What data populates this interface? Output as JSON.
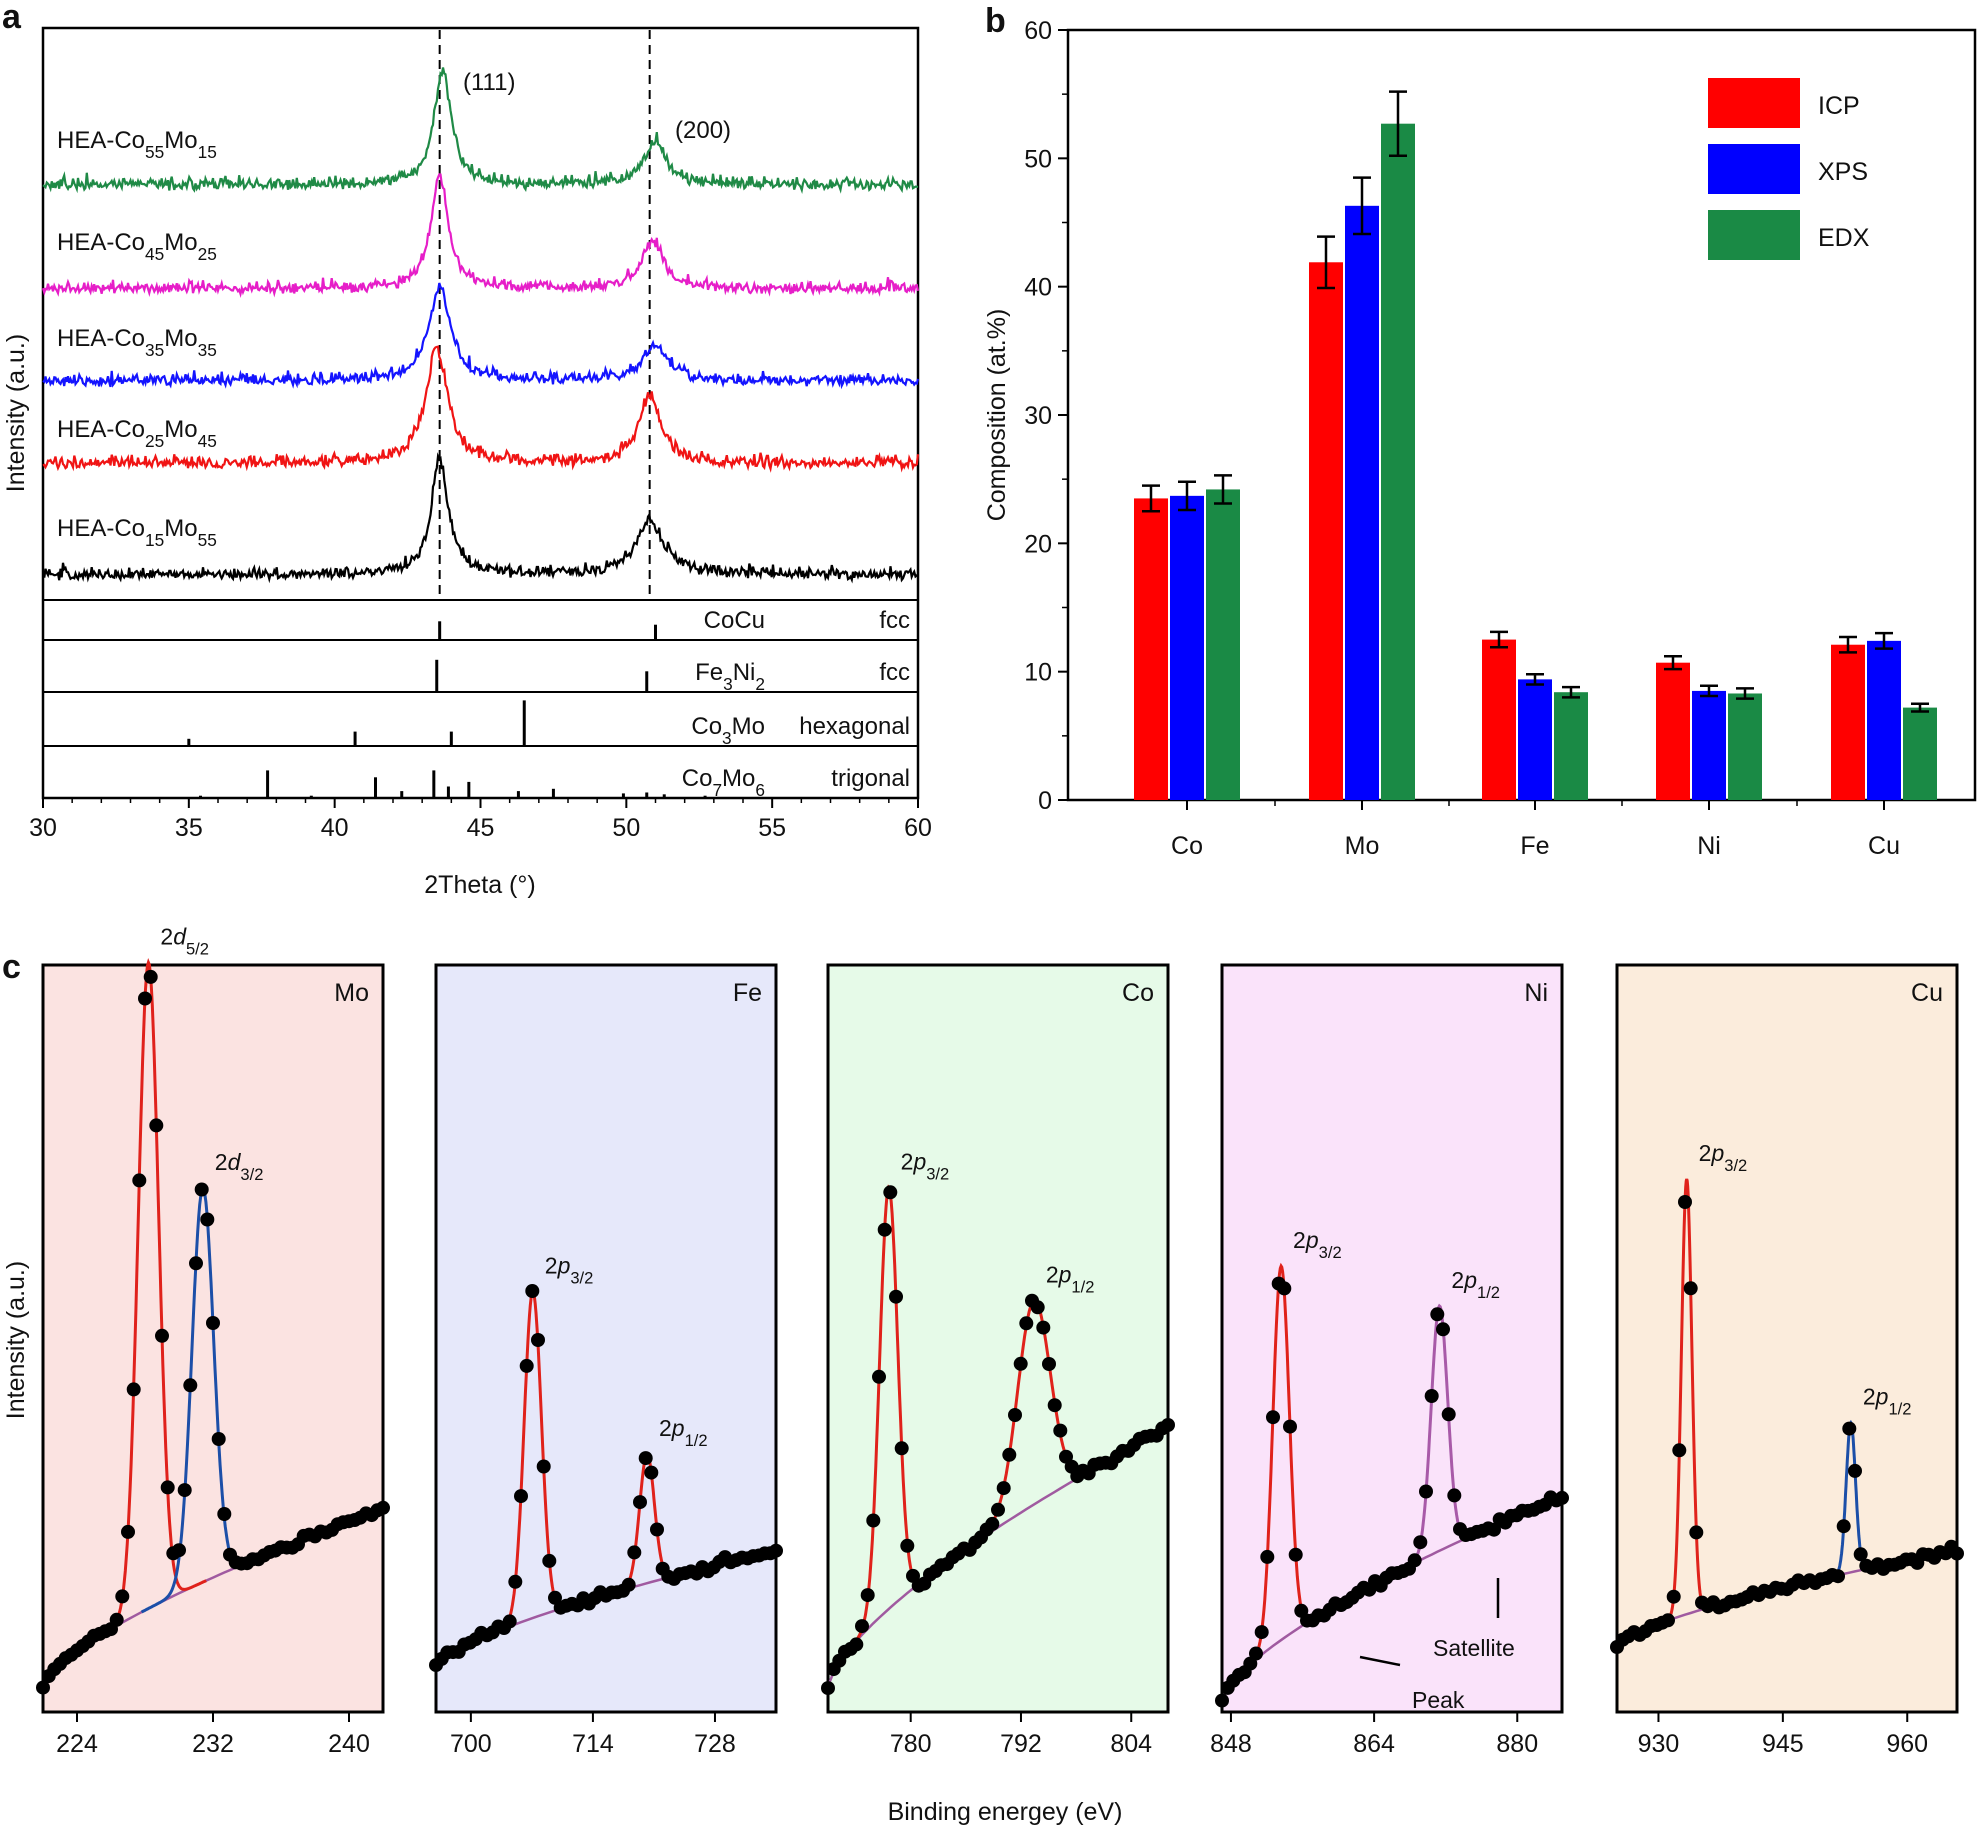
{
  "panels": {
    "a": "a",
    "b": "b",
    "c": "c"
  },
  "chart_data": [
    {
      "id": "a",
      "type": "line",
      "xlabel": "2Theta (°)",
      "ylabel": "Intensity (a.u.)",
      "xlim": [
        30,
        60
      ],
      "xticks": [
        30,
        35,
        40,
        45,
        50,
        55,
        60
      ],
      "peak_labels": [
        {
          "text": "(111)",
          "x": 43.6
        },
        {
          "text": "(200)",
          "x": 50.8
        }
      ],
      "series": [
        {
          "name": "HEA-Co55Mo15",
          "label_main": "HEA-Co",
          "sub1": "55",
          "mid": "Mo",
          "sub2": "15",
          "color": "#1f8a46",
          "peaks": [
            {
              "x": 43.7,
              "h": 1.0,
              "w": 0.35
            },
            {
              "x": 51.0,
              "h": 0.38,
              "w": 0.45
            }
          ]
        },
        {
          "name": "HEA-Co45Mo25",
          "label_main": "HEA-Co",
          "sub1": "45",
          "mid": "Mo",
          "sub2": "25",
          "color": "#e61ec8",
          "peaks": [
            {
              "x": 43.6,
              "h": 1.0,
              "w": 0.35
            },
            {
              "x": 50.9,
              "h": 0.42,
              "w": 0.45
            }
          ]
        },
        {
          "name": "HEA-Co35Mo35",
          "label_main": "HEA-Co",
          "sub1": "35",
          "mid": "Mo",
          "sub2": "35",
          "color": "#1414ff",
          "peaks": [
            {
              "x": 43.6,
              "h": 0.8,
              "w": 0.45
            },
            {
              "x": 51.0,
              "h": 0.3,
              "w": 0.5
            }
          ]
        },
        {
          "name": "HEA-Co25Mo45",
          "label_main": "HEA-Co",
          "sub1": "25",
          "mid": "Mo",
          "sub2": "45",
          "color": "#f01414",
          "peaks": [
            {
              "x": 43.5,
              "h": 1.0,
              "w": 0.45
            },
            {
              "x": 50.8,
              "h": 0.6,
              "w": 0.45
            }
          ]
        },
        {
          "name": "HEA-Co15Mo55",
          "label_main": "HEA-Co",
          "sub1": "15",
          "mid": "Mo",
          "sub2": "55",
          "color": "#000000",
          "peaks": [
            {
              "x": 43.6,
              "h": 1.0,
              "w": 0.35
            },
            {
              "x": 50.8,
              "h": 0.45,
              "w": 0.6
            }
          ]
        }
      ],
      "references": [
        {
          "phase": "CoCu",
          "phase_main": "CoCu",
          "s1": "",
          "m": "",
          "s2": "",
          "structure": "fcc",
          "lines": [
            {
              "x": 43.6,
              "h": 0.55
            },
            {
              "x": 51.0,
              "h": 0.45
            }
          ]
        },
        {
          "phase": "Fe3Ni2",
          "phase_main": "Fe",
          "s1": "3",
          "m": "Ni",
          "s2": "2",
          "structure": "fcc",
          "lines": [
            {
              "x": 43.5,
              "h": 0.7
            },
            {
              "x": 50.7,
              "h": 0.45
            }
          ]
        },
        {
          "phase": "Co3Mo",
          "phase_main": "Co",
          "s1": "3",
          "m": "Mo",
          "s2": "",
          "structure": "hexagonal",
          "lines": [
            {
              "x": 35.0,
              "h": 0.15
            },
            {
              "x": 40.7,
              "h": 0.3
            },
            {
              "x": 44.0,
              "h": 0.3
            },
            {
              "x": 46.5,
              "h": 0.95
            }
          ]
        },
        {
          "phase": "Co7Mo6",
          "phase_main": "Co",
          "s1": "7",
          "m": "Mo",
          "s2": "6",
          "structure": "trigonal",
          "lines": [
            {
              "x": 35.4,
              "h": 0.05
            },
            {
              "x": 37.7,
              "h": 0.6
            },
            {
              "x": 39.2,
              "h": 0.05
            },
            {
              "x": 41.4,
              "h": 0.45
            },
            {
              "x": 42.3,
              "h": 0.15
            },
            {
              "x": 43.4,
              "h": 0.6
            },
            {
              "x": 43.9,
              "h": 0.25
            },
            {
              "x": 44.6,
              "h": 0.35
            },
            {
              "x": 46.3,
              "h": 0.15
            },
            {
              "x": 47.5,
              "h": 0.2
            },
            {
              "x": 49.9,
              "h": 0.1
            },
            {
              "x": 50.7,
              "h": 0.12
            },
            {
              "x": 51.3,
              "h": 0.08
            },
            {
              "x": 52.7,
              "h": 0.05
            }
          ]
        }
      ]
    },
    {
      "id": "b",
      "type": "bar",
      "ylabel": "Composition (at.%)",
      "ylim": [
        0,
        60
      ],
      "yticks": [
        0,
        10,
        20,
        30,
        40,
        50,
        60
      ],
      "categories": [
        "Co",
        "Mo",
        "Fe",
        "Ni",
        "Cu"
      ],
      "series": [
        {
          "name": "ICP",
          "color": "#ff0000",
          "values": [
            23.5,
            41.9,
            12.5,
            10.7,
            12.1
          ],
          "errors": [
            1.0,
            2.0,
            0.6,
            0.5,
            0.6
          ]
        },
        {
          "name": "XPS",
          "color": "#0000ff",
          "values": [
            23.7,
            46.3,
            9.4,
            8.5,
            12.4
          ],
          "errors": [
            1.1,
            2.2,
            0.4,
            0.4,
            0.6
          ]
        },
        {
          "name": "EDX",
          "color": "#1a8a45",
          "values": [
            24.2,
            52.7,
            8.4,
            8.3,
            7.2
          ],
          "errors": [
            1.1,
            2.5,
            0.4,
            0.4,
            0.3
          ]
        }
      ],
      "legend_position": "top-right"
    },
    {
      "id": "c",
      "type": "scatter",
      "xlabel": "Binding energey (eV)",
      "ylabel": "Intensity (a.u.)",
      "subpanels": [
        {
          "element": "Mo",
          "bg": "#fbe3e1",
          "xlim": [
            222,
            242
          ],
          "xticks": [
            224,
            232,
            240
          ],
          "peaks": [
            {
              "x": 228.2,
              "h": 0.95,
              "w": 0.85,
              "color": "#e0221b",
              "label": "2d",
              "sub": "5/2"
            },
            {
              "x": 231.4,
              "h": 0.58,
              "w": 0.9,
              "color": "#1c4fa8",
              "label": "2d",
              "sub": "3/2"
            }
          ],
          "baseline": [
            0.02,
            0.28
          ],
          "offset": 0.0
        },
        {
          "element": "Fe",
          "bg": "#e6e8fa",
          "xlim": [
            696,
            735
          ],
          "xticks": [
            700,
            714,
            728
          ],
          "peaks": [
            {
              "x": 707.1,
              "h": 0.48,
              "w": 1.4,
              "color": "#e0221b",
              "label": "2p",
              "sub": "3/2"
            },
            {
              "x": 720.2,
              "h": 0.19,
              "w": 1.2,
              "color": "#e0221b",
              "label": "2p",
              "sub": "1/2"
            }
          ],
          "baseline": [
            0.05,
            0.22
          ],
          "offset": 0.0
        },
        {
          "element": "Co",
          "bg": "#e6fae8",
          "xlim": [
            771,
            808
          ],
          "xticks": [
            780,
            792,
            804
          ],
          "peaks": [
            {
              "x": 777.6,
              "h": 0.62,
              "w": 1.4,
              "color": "#e0221b",
              "label": "2p",
              "sub": "3/2"
            },
            {
              "x": 793.4,
              "h": 0.3,
              "w": 2.5,
              "color": "#e0221b",
              "label": "2p",
              "sub": "1/2"
            }
          ],
          "baseline": [
            0.02,
            0.4
          ],
          "offset": 0.0
        },
        {
          "element": "Ni",
          "bg": "#fae3fa",
          "xlim": [
            847,
            885
          ],
          "xticks": [
            848,
            864,
            880
          ],
          "peaks": [
            {
              "x": 853.6,
              "h": 0.55,
              "w": 1.3,
              "color": "#e0221b",
              "label": "2p",
              "sub": "3/2"
            },
            {
              "x": 871.3,
              "h": 0.36,
              "w": 1.3,
              "color": "#a85aa8",
              "label": "2p",
              "sub": "1/2"
            }
          ],
          "baseline": [
            0.0,
            0.3
          ],
          "offset": 0.0,
          "annotations": [
            {
              "text": "Peak"
            },
            {
              "text": "Satellite"
            }
          ]
        },
        {
          "element": "Cu",
          "bg": "#fbecdc",
          "xlim": [
            925,
            966
          ],
          "xticks": [
            930,
            945,
            960
          ],
          "peaks": [
            {
              "x": 933.4,
              "h": 0.64,
              "w": 0.9,
              "color": "#e0221b",
              "label": "2p",
              "sub": "3/2"
            },
            {
              "x": 953.2,
              "h": 0.22,
              "w": 0.8,
              "color": "#1c4fa8",
              "label": "2p",
              "sub": "1/2"
            }
          ],
          "baseline": [
            0.08,
            0.22
          ],
          "offset": 0.0
        }
      ]
    }
  ]
}
